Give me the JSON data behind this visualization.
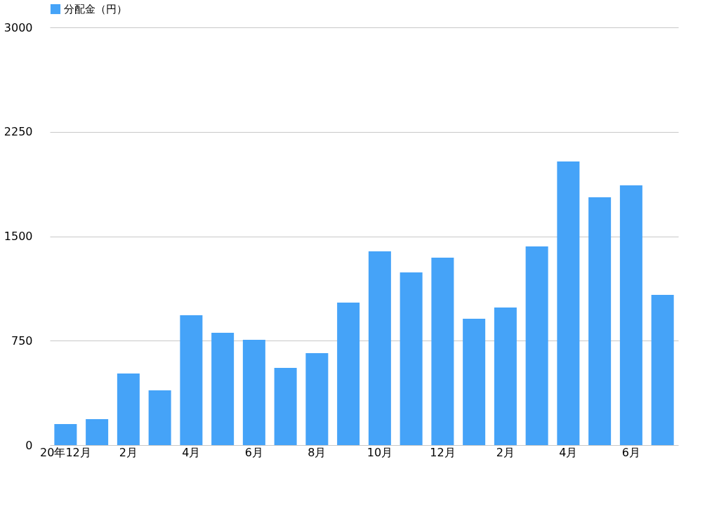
{
  "chart_data": {
    "type": "bar",
    "categories": [
      "20年12月",
      null,
      "2月",
      null,
      "4月",
      null,
      "6月",
      null,
      "8月",
      null,
      "10月",
      null,
      "12月",
      null,
      "2月",
      null,
      "4月",
      null,
      "6月",
      null
    ],
    "series": [
      {
        "name": "分配金（円）",
        "color": "#45a3f8",
        "values": [
          151,
          187,
          514,
          393,
          933,
          807,
          756,
          555,
          660,
          1024,
          1392,
          1240,
          1346,
          908,
          988,
          1427,
          2037,
          1780,
          1866,
          1079
        ]
      }
    ],
    "ylim": [
      0,
      3000
    ],
    "yticks": [
      0,
      750,
      1500,
      2250,
      3000
    ],
    "grid": "y",
    "legend": "top"
  }
}
